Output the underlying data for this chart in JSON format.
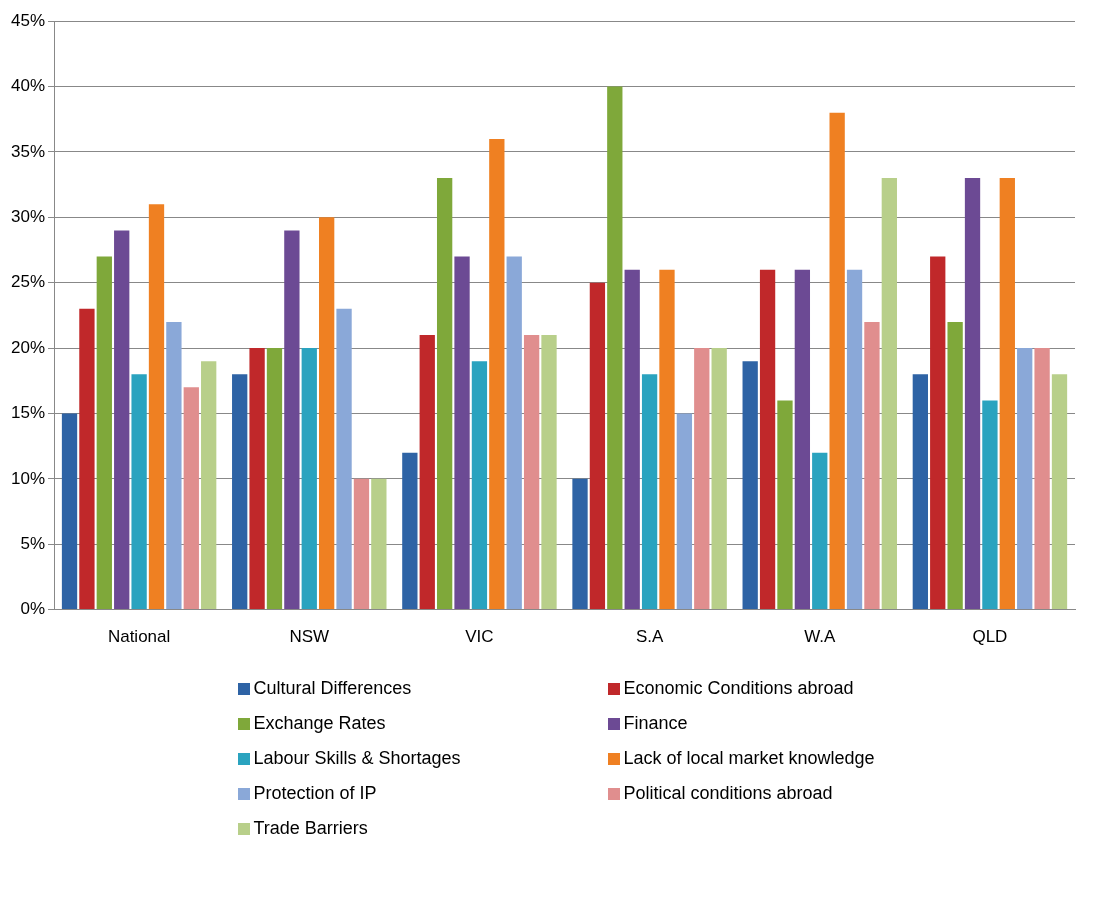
{
  "chart_data": {
    "type": "bar",
    "categories": [
      "National",
      "NSW",
      "VIC",
      "S.A",
      "W.A",
      "QLD"
    ],
    "series": [
      {
        "name": "Cultural Differences",
        "color": "#2e63a5",
        "values": [
          15,
          18,
          12,
          10,
          19,
          18
        ]
      },
      {
        "name": "Economic Conditions  abroad",
        "color": "#c0282a",
        "values": [
          23,
          20,
          21,
          25,
          26,
          27
        ]
      },
      {
        "name": "Exchange Rates",
        "color": "#7fa83a",
        "values": [
          27,
          20,
          33,
          40,
          16,
          22
        ]
      },
      {
        "name": "Finance",
        "color": "#6c4a94",
        "values": [
          29,
          29,
          27,
          26,
          26,
          33
        ]
      },
      {
        "name": "Labour Skills & Shortages",
        "color": "#2aa3bf",
        "values": [
          18,
          20,
          19,
          18,
          12,
          16
        ]
      },
      {
        "name": "Lack of local market knowledge",
        "color": "#ef8022",
        "values": [
          31,
          30,
          36,
          26,
          38,
          33
        ]
      },
      {
        "name": "Protection of IP",
        "color": "#8aa8d8",
        "values": [
          22,
          23,
          27,
          15,
          26,
          20
        ]
      },
      {
        "name": "Political conditions  abroad",
        "color": "#e08e8e",
        "values": [
          17,
          10,
          21,
          20,
          22,
          20
        ]
      },
      {
        "name": "Trade Barriers",
        "color": "#b8cf8a",
        "values": [
          19,
          10,
          21,
          20,
          33,
          18
        ]
      }
    ],
    "ylim": [
      0,
      45
    ],
    "yticks": [
      {
        "value": 0,
        "label": "0%"
      },
      {
        "value": 5,
        "label": "5%"
      },
      {
        "value": 10,
        "label": "10%"
      },
      {
        "value": 15,
        "label": "15%"
      },
      {
        "value": 20,
        "label": "20%"
      },
      {
        "value": 25,
        "label": "25%"
      },
      {
        "value": 30,
        "label": "30%"
      },
      {
        "value": 35,
        "label": "35%"
      },
      {
        "value": 40,
        "label": "40%"
      },
      {
        "value": 45,
        "label": "45%"
      }
    ],
    "grid": "y",
    "legend": "bottom"
  }
}
